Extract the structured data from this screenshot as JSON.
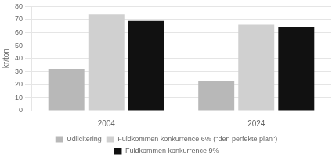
{
  "chart_data": {
    "type": "bar",
    "categories": [
      "2004",
      "2024"
    ],
    "series": [
      {
        "name": "Udlicitering",
        "color": "#b8b8b8",
        "values": [
          32,
          23
        ]
      },
      {
        "name": "Fuldkommen konkurrence 6% (\"den perfekte plan\")",
        "color": "#d0d0d0",
        "values": [
          74,
          66
        ]
      },
      {
        "name": "Fuldkommen konkurrence 9%",
        "color": "#111111",
        "values": [
          69,
          64
        ]
      }
    ],
    "ylabel": "kr/ton",
    "ylim": [
      0,
      80
    ],
    "yticks": [
      0,
      10,
      20,
      30,
      40,
      50,
      60,
      70,
      80
    ],
    "grid": true,
    "legend": "bottom"
  }
}
